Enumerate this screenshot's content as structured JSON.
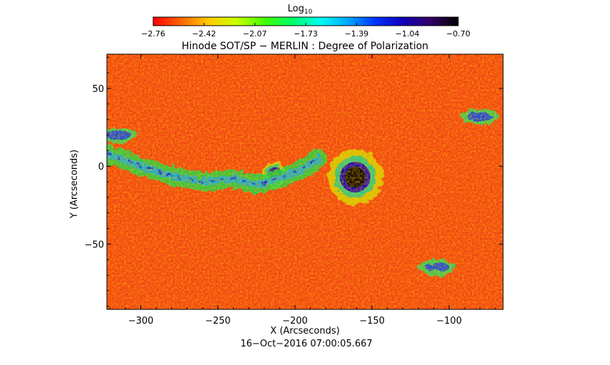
{
  "chart_data": {
    "type": "heatmap",
    "title": "Hinode SOT/SP − MERLIN : Degree of Polarization",
    "colorbar": {
      "label_main": "Log",
      "label_sub": "10",
      "ticks": [
        "−2.76",
        "−2.42",
        "−2.07",
        "−1.73",
        "−1.39",
        "−1.04",
        "−0.70"
      ],
      "range": [
        -2.76,
        -0.7
      ],
      "colors": [
        "#ff0000",
        "#ff6600",
        "#ffcc00",
        "#ccff00",
        "#44ff00",
        "#00ff66",
        "#00ffee",
        "#00aaff",
        "#0033ff",
        "#1100bb",
        "#330066",
        "#000000"
      ]
    },
    "xlabel": "X (Arcseconds)",
    "ylabel": "Y (Arcseconds)",
    "xlim": [
      -322,
      -65
    ],
    "ylim": [
      -92,
      72
    ],
    "xticks": [
      -300,
      -250,
      -200,
      -150,
      -100
    ],
    "xtick_labels": [
      "−300",
      "−250",
      "−200",
      "−150",
      "−100"
    ],
    "yticks": [
      50,
      0,
      -50
    ],
    "ytick_labels": [
      "50",
      "0",
      "−50"
    ],
    "timestamp": "16−Oct−2016 07:00:05.667",
    "background_color": "#f04018",
    "features": [
      {
        "name": "sunspot",
        "x": -161,
        "y": -7,
        "value": -0.72,
        "radius": 9
      },
      {
        "name": "pore",
        "x": -213,
        "y": -5,
        "value": -0.95,
        "radius": 4
      },
      {
        "name": "plage-band",
        "x": -250,
        "y": -6,
        "value": -1.6
      },
      {
        "name": "network-patch-upper-right",
        "x": -80,
        "y": 32,
        "value": -1.2
      },
      {
        "name": "network-patch-lower-right",
        "x": -108,
        "y": -65,
        "value": -1.3
      },
      {
        "name": "network-patch-left-edge",
        "x": -315,
        "y": 20,
        "value": -1.3
      }
    ]
  }
}
